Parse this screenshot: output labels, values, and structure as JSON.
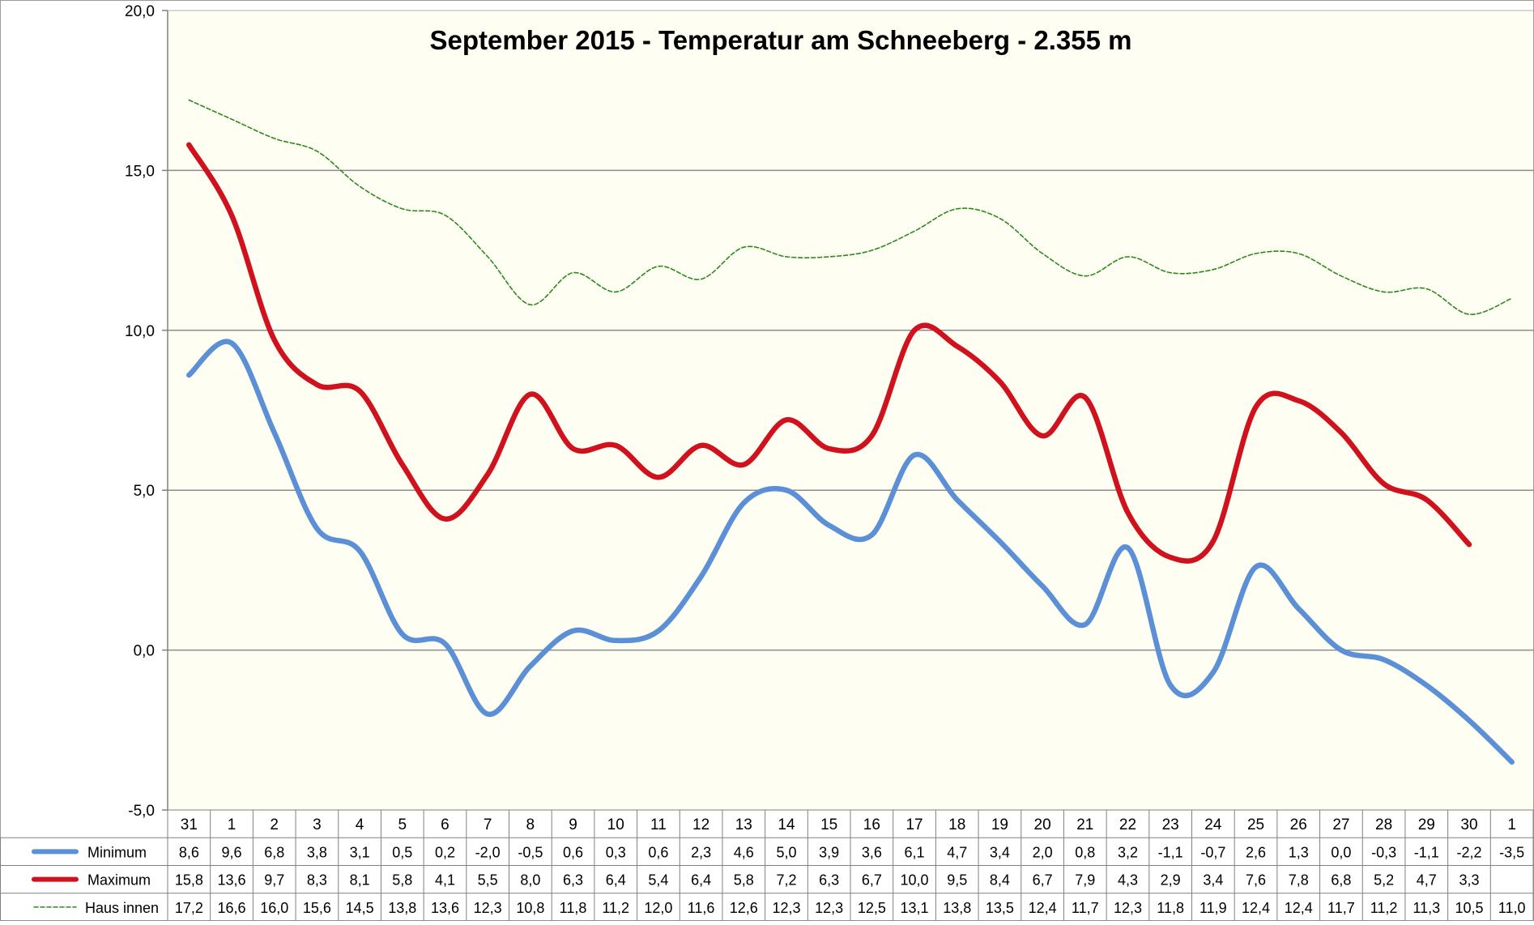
{
  "chart_data": {
    "type": "line",
    "title": "September 2015 - Temperatur am Schneeberg - 2.355 m",
    "xlabel": "",
    "ylabel": "",
    "ylim": [
      -5,
      20
    ],
    "yticks": [
      "20,0",
      "15,0",
      "10,0",
      "5,0",
      "0,0",
      "-5,0"
    ],
    "grid": true,
    "legend": "table-left",
    "categories": [
      "31",
      "1",
      "2",
      "3",
      "4",
      "5",
      "6",
      "7",
      "8",
      "9",
      "10",
      "11",
      "12",
      "13",
      "14",
      "15",
      "16",
      "17",
      "18",
      "19",
      "20",
      "21",
      "22",
      "23",
      "24",
      "25",
      "26",
      "27",
      "28",
      "29",
      "30",
      "1"
    ],
    "series": [
      {
        "name": "Minimum",
        "color": "#5b8fd6",
        "style": "thick",
        "values": [
          8.6,
          9.6,
          6.8,
          3.8,
          3.1,
          0.5,
          0.2,
          -2.0,
          -0.5,
          0.6,
          0.3,
          0.6,
          2.3,
          4.6,
          5.0,
          3.9,
          3.6,
          6.1,
          4.7,
          3.4,
          2.0,
          0.8,
          3.2,
          -1.1,
          -0.7,
          2.6,
          1.3,
          0.0,
          -0.3,
          -1.1,
          -2.2,
          -3.5
        ],
        "labels": [
          "8,6",
          "9,6",
          "6,8",
          "3,8",
          "3,1",
          "0,5",
          "0,2",
          "-2,0",
          "-0,5",
          "0,6",
          "0,3",
          "0,6",
          "2,3",
          "4,6",
          "5,0",
          "3,9",
          "3,6",
          "6,1",
          "4,7",
          "3,4",
          "2,0",
          "0,8",
          "3,2",
          "-1,1",
          "-0,7",
          "2,6",
          "1,3",
          "0,0",
          "-0,3",
          "-1,1",
          "-2,2",
          "-3,5"
        ]
      },
      {
        "name": "Maximum",
        "color": "#d0121f",
        "style": "thick",
        "values": [
          15.8,
          13.6,
          9.7,
          8.3,
          8.1,
          5.8,
          4.1,
          5.5,
          8.0,
          6.3,
          6.4,
          5.4,
          6.4,
          5.8,
          7.2,
          6.3,
          6.7,
          10.0,
          9.5,
          8.4,
          6.7,
          7.9,
          4.3,
          2.9,
          3.4,
          7.6,
          7.8,
          6.8,
          5.2,
          4.7,
          3.3,
          null
        ],
        "labels": [
          "15,8",
          "13,6",
          "9,7",
          "8,3",
          "8,1",
          "5,8",
          "4,1",
          "5,5",
          "8,0",
          "6,3",
          "6,4",
          "5,4",
          "6,4",
          "5,8",
          "7,2",
          "6,3",
          "6,7",
          "10,0",
          "9,5",
          "8,4",
          "6,7",
          "7,9",
          "4,3",
          "2,9",
          "3,4",
          "7,6",
          "7,8",
          "6,8",
          "5,2",
          "4,7",
          "3,3",
          ""
        ]
      },
      {
        "name": "Haus innen",
        "color": "#2a8a1e",
        "style": "dashed",
        "values": [
          17.2,
          16.6,
          16.0,
          15.6,
          14.5,
          13.8,
          13.6,
          12.3,
          10.8,
          11.8,
          11.2,
          12.0,
          11.6,
          12.6,
          12.3,
          12.3,
          12.5,
          13.1,
          13.8,
          13.5,
          12.4,
          11.7,
          12.3,
          11.8,
          11.9,
          12.4,
          12.4,
          11.7,
          11.2,
          11.3,
          10.5,
          11.0
        ],
        "labels": [
          "17,2",
          "16,6",
          "16,0",
          "15,6",
          "14,5",
          "13,8",
          "13,6",
          "12,3",
          "10,8",
          "11,8",
          "11,2",
          "12,0",
          "11,6",
          "12,6",
          "12,3",
          "12,3",
          "12,5",
          "13,1",
          "13,8",
          "13,5",
          "12,4",
          "11,7",
          "12,3",
          "11,8",
          "11,9",
          "12,4",
          "12,4",
          "11,7",
          "11,2",
          "11,3",
          "10,5",
          "11,0"
        ]
      }
    ],
    "colors": {
      "plot_background": "#fefef2",
      "gridline": "#8c8c8c",
      "border": "#808080"
    }
  }
}
